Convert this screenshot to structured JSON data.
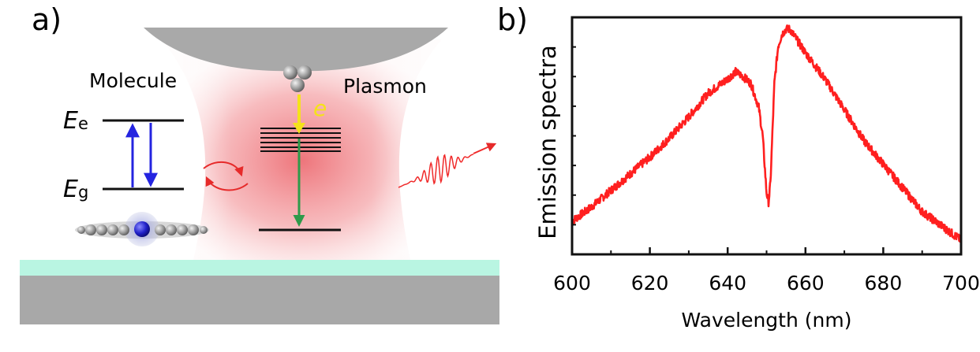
{
  "panel_a": {
    "label": "a)",
    "molecule_label": "Molecule",
    "plasmon_label": "Plasmon",
    "energy_excited": {
      "symbol": "E",
      "subscript": "e"
    },
    "energy_ground": {
      "symbol": "E",
      "subscript": "g"
    },
    "electron_label": "e",
    "colors": {
      "tip": "#a9a9a9",
      "substrate": "#a8a8a8",
      "spacer_layer": "#b9f5e2",
      "plasmon_glow": "#e8474f",
      "electron_arrow": "#f5e21a",
      "molecule_transition": "#2424e0",
      "plasmon_decay": "#2e9a4a",
      "photon": "#f02a2a",
      "coupling_arrow": "#e62a2a"
    }
  },
  "panel_b": {
    "label": "b)",
    "chart_data": {
      "type": "line",
      "title": "",
      "xlabel": "Wavelength (nm)",
      "ylabel": "Emission spectra",
      "xlim": [
        600,
        700
      ],
      "ylim": [
        0,
        1
      ],
      "x_ticks": [
        600,
        620,
        640,
        660,
        680,
        700
      ],
      "y_tick_labels": false,
      "grid": false,
      "series": [
        {
          "name": "Emission",
          "color": "#ff1f1f",
          "x": [
            600,
            605,
            610,
            615,
            620,
            625,
            630,
            635,
            640,
            642,
            644,
            646,
            648,
            649,
            650,
            650.5,
            651,
            652,
            653,
            654,
            655,
            656,
            658,
            660,
            665,
            670,
            675,
            680,
            685,
            690,
            695,
            700
          ],
          "y": [
            0.14,
            0.2,
            0.27,
            0.34,
            0.41,
            0.49,
            0.58,
            0.68,
            0.74,
            0.77,
            0.75,
            0.72,
            0.62,
            0.5,
            0.26,
            0.22,
            0.3,
            0.72,
            0.88,
            0.93,
            0.95,
            0.95,
            0.9,
            0.85,
            0.74,
            0.61,
            0.48,
            0.38,
            0.28,
            0.18,
            0.12,
            0.06
          ]
        }
      ]
    }
  }
}
